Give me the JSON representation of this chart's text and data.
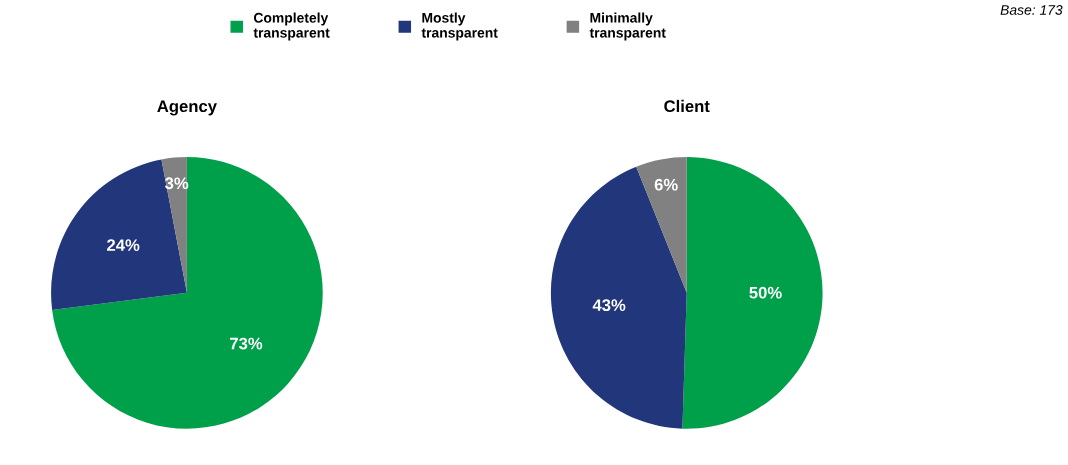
{
  "chart_data": [
    {
      "type": "pie",
      "title": "Agency",
      "categories": [
        "Completely\ntransparent",
        "Mostly\ntransparent",
        "Minimally\ntransparent"
      ],
      "values": [
        73,
        24,
        3
      ],
      "colors": [
        "#00a04b",
        "#22377b",
        "#818181"
      ],
      "value_labels": [
        "73%",
        "24%",
        "3%"
      ],
      "legend": "top"
    },
    {
      "type": "pie",
      "title": "Client",
      "categories": [
        null,
        null,
        null
      ],
      "values": [
        50,
        43,
        6
      ],
      "colors": [
        "#00a04b",
        "#22377b",
        "#818181"
      ],
      "value_labels": [
        "50%",
        "43%",
        "6%"
      ],
      "annotations": [
        "Base: 173"
      ]
    }
  ]
}
